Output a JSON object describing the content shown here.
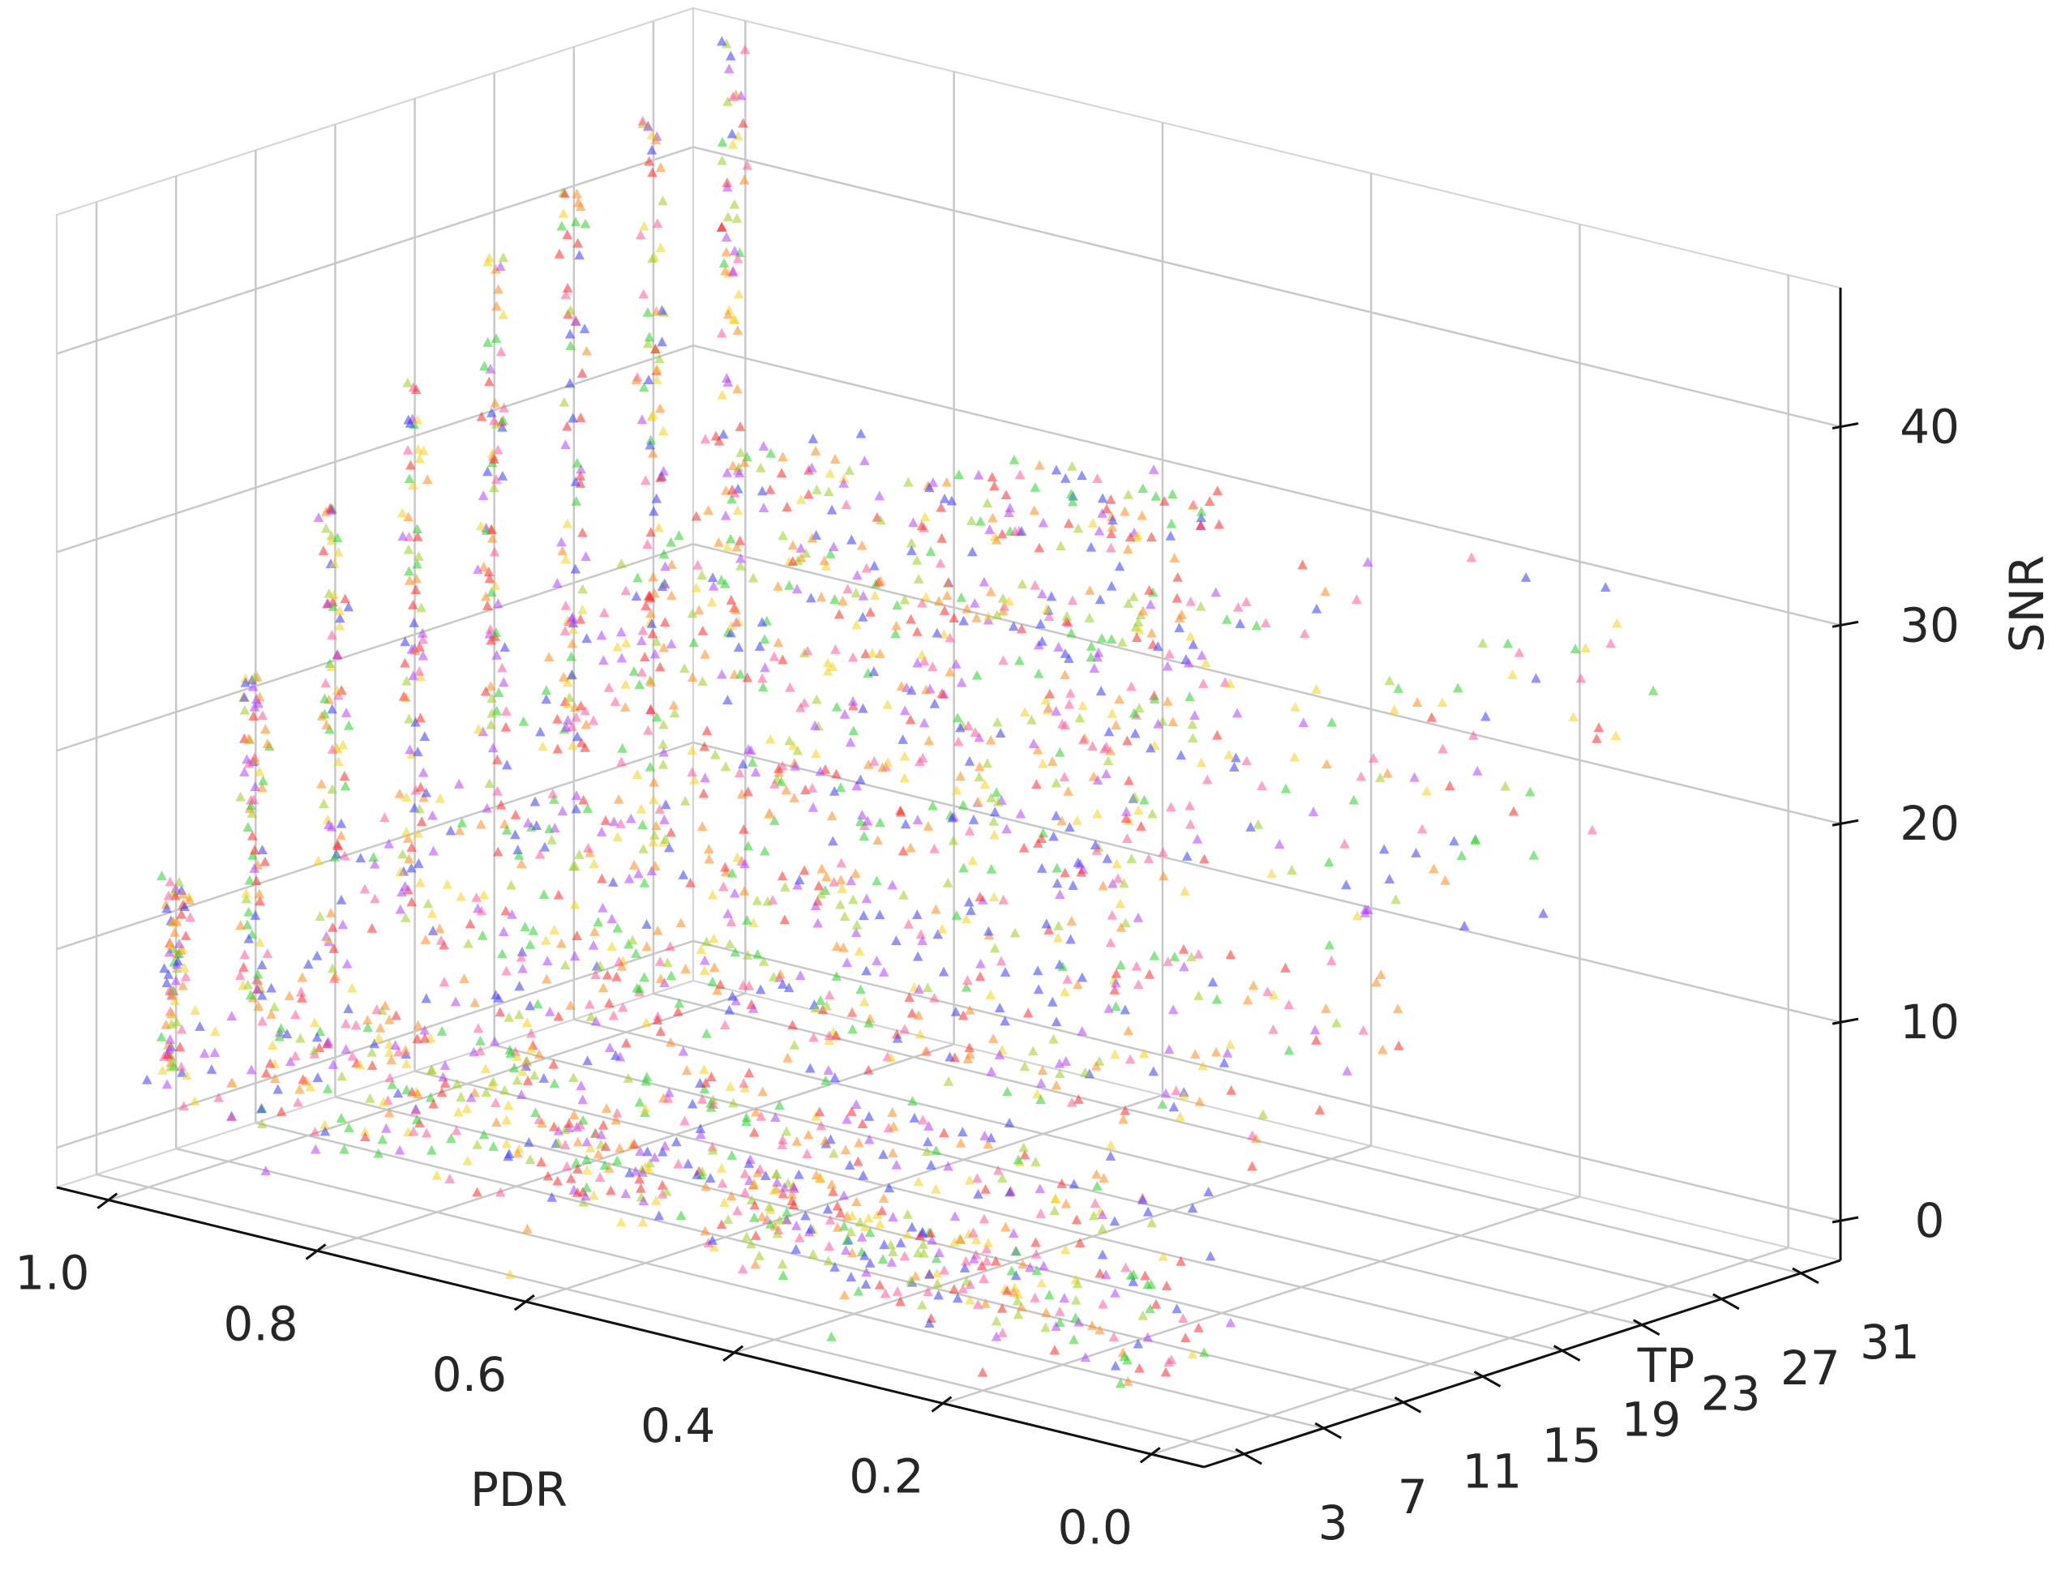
{
  "chart_data": {
    "type": "scatter",
    "projection": "3d",
    "marker": "triangle",
    "xlabel": "PDR",
    "ylabel": "TP",
    "zlabel": "SNR",
    "xlim": [
      1.05,
      -0.05
    ],
    "ylim": [
      1,
      33
    ],
    "zlim": [
      -2,
      47
    ],
    "xticks": [
      1.0,
      0.8,
      0.6,
      0.4,
      0.2,
      0.0
    ],
    "xtick_labels": [
      "1.0",
      "0.8",
      "0.6",
      "0.4",
      "0.2",
      "0.0"
    ],
    "yticks": [
      3,
      7,
      11,
      15,
      19,
      23,
      27,
      31
    ],
    "ytick_labels": [
      "3",
      "7",
      "11",
      "15",
      "19",
      "23",
      "27",
      "31"
    ],
    "zticks": [
      0,
      10,
      20,
      30,
      40
    ],
    "ztick_labels": [
      "0",
      "10",
      "20",
      "30",
      "40"
    ],
    "grid": true,
    "point_colors": [
      "#ff2a2a",
      "#3a3aff",
      "#2ccf2c",
      "#f2d21e",
      "#b040ff",
      "#ff8a1e",
      "#ff5a9a",
      "#9ad022"
    ],
    "towers": [
      {
        "tp": 3,
        "snr_range": [
          4,
          14
        ]
      },
      {
        "tp": 7,
        "snr_range": [
          6,
          23
        ]
      },
      {
        "tp": 11,
        "snr_range": [
          8,
          30
        ]
      },
      {
        "tp": 15,
        "snr_range": [
          10,
          35
        ]
      },
      {
        "tp": 19,
        "snr_range": [
          12,
          40
        ]
      },
      {
        "tp": 23,
        "snr_range": [
          14,
          42
        ]
      },
      {
        "tp": 27,
        "snr_range": [
          16,
          45
        ]
      },
      {
        "tp": 31,
        "snr_range": [
          17,
          47
        ]
      }
    ],
    "streaks": [
      {
        "tp": 3,
        "snr_start": 5.0,
        "snr_slope": -0.8
      },
      {
        "tp": 7,
        "snr_start": 7.5,
        "snr_slope": -0.4
      },
      {
        "tp": 11,
        "snr_start": 10.5,
        "snr_slope": 0.2
      },
      {
        "tp": 15,
        "snr_start": 13.5,
        "snr_slope": 1.2
      },
      {
        "tp": 19,
        "snr_start": 16.5,
        "snr_slope": 2.5
      },
      {
        "tp": 23,
        "snr_start": 19.5,
        "snr_slope": 3.5
      },
      {
        "tp": 27,
        "snr_start": 22.5,
        "snr_slope": 4.8
      },
      {
        "tp": 31,
        "snr_start": 25.5,
        "snr_slope": 6.0
      }
    ]
  }
}
